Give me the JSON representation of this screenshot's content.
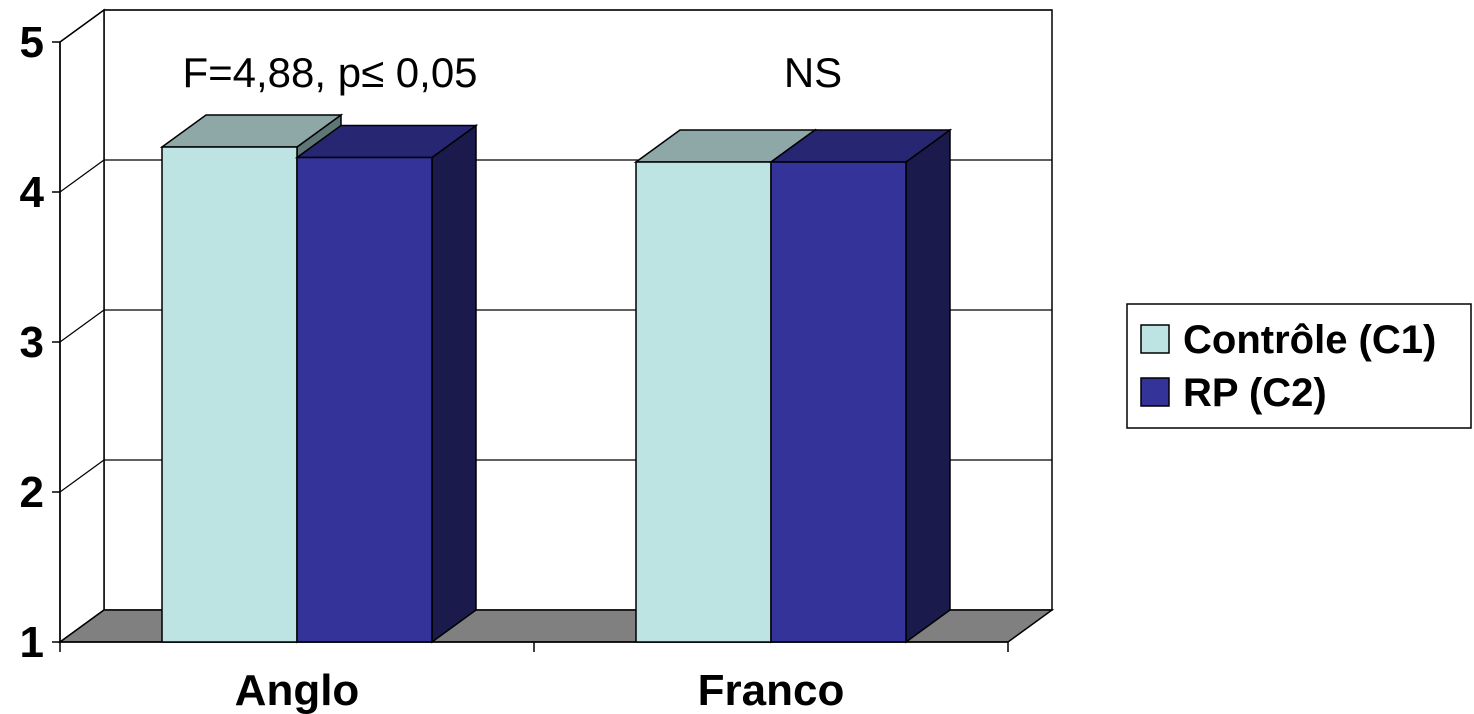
{
  "chart_data": {
    "type": "bar",
    "categories": [
      "Anglo",
      "Franco"
    ],
    "series": [
      {
        "name": "Contrôle (C1)",
        "values": [
          4.3,
          4.2
        ]
      },
      {
        "name": "RP (C2)",
        "values": [
          4.23,
          4.2
        ]
      }
    ],
    "ylim": [
      1,
      5
    ],
    "yticks": [
      "1",
      "2",
      "3",
      "4",
      "5"
    ],
    "grid": true,
    "legend": "right",
    "annotations": [
      "F=4,88, p≤ 0,05",
      "NS"
    ]
  },
  "colors": {
    "series": [
      {
        "front": "#bde3e3",
        "top": "#8ea8a8",
        "side": "#5f7676"
      },
      {
        "front": "#333399",
        "top": "#262673",
        "side": "#1a1a4d"
      }
    ],
    "floor": "#808080",
    "grid": "#000000"
  }
}
